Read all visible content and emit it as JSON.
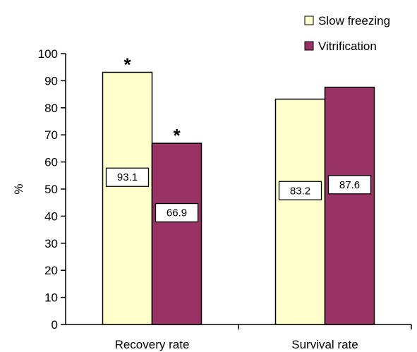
{
  "chart_data": {
    "type": "bar",
    "title": "",
    "xlabel": "",
    "ylabel": "%",
    "ylim": [
      0,
      100
    ],
    "yticks": [
      0,
      10,
      20,
      30,
      40,
      50,
      60,
      70,
      80,
      90,
      100
    ],
    "categories": [
      "Recovery rate",
      "Survival rate"
    ],
    "series": [
      {
        "name": "Slow freezing",
        "values": [
          93.1,
          83.2
        ],
        "labels": [
          "93.1",
          "83.2"
        ],
        "color": "#FFFFCC"
      },
      {
        "name": "Vitrification",
        "values": [
          66.9,
          87.6
        ],
        "labels": [
          "66.9",
          "87.6"
        ],
        "color": "#993366"
      }
    ],
    "significance": [
      "*",
      "*"
    ],
    "legend_position": "top-right",
    "grid": false
  }
}
